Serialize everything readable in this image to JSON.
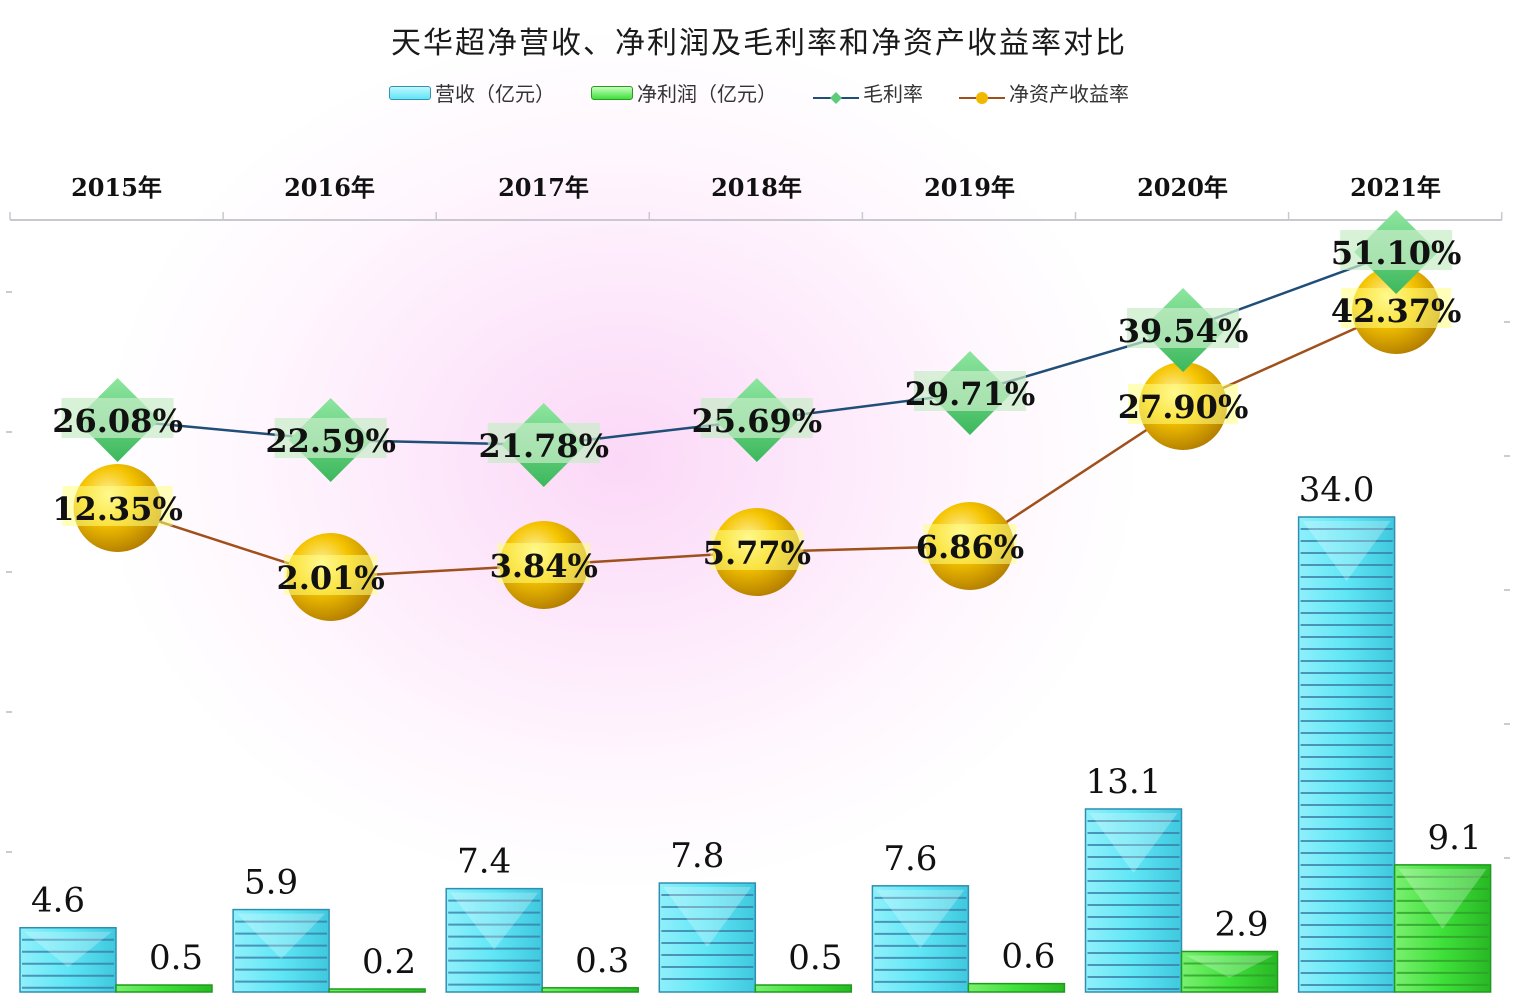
{
  "chart_data": {
    "type": "bar+line",
    "title": "天华超净营收、净利润及毛利率和净资产收益率对比",
    "categories": [
      "2015年",
      "2016年",
      "2017年",
      "2018年",
      "2019年",
      "2020年",
      "2021年"
    ],
    "series": [
      {
        "name": "营收（亿元）",
        "type": "bar",
        "axis": "left",
        "values": [
          4.6,
          5.9,
          7.4,
          7.8,
          7.6,
          13.1,
          34.0
        ],
        "labels": [
          "4.6",
          "5.9",
          "7.4",
          "7.8",
          "7.6",
          "13.1",
          "34.0"
        ],
        "color": "#5fe6f5"
      },
      {
        "name": "净利润（亿元）",
        "type": "bar",
        "axis": "left",
        "values": [
          0.5,
          0.2,
          0.3,
          0.5,
          0.6,
          2.9,
          9.1
        ],
        "labels": [
          "0.5",
          "0.2",
          "0.3",
          "0.5",
          "0.6",
          "2.9",
          "9.1"
        ],
        "color": "#3fe03a"
      },
      {
        "name": "毛利率",
        "type": "line",
        "axis": "right",
        "values": [
          26.08,
          22.59,
          21.78,
          25.69,
          29.71,
          39.54,
          51.1
        ],
        "labels": [
          "26.08%",
          "22.59%",
          "21.78%",
          "25.69%",
          "29.71%",
          "39.54%",
          "51.10%"
        ],
        "color": "#1f4e79",
        "marker": "diamond",
        "marker_color": "#5ccc7a"
      },
      {
        "name": "净资产收益率",
        "type": "line",
        "axis": "right",
        "values": [
          12.35,
          2.01,
          3.84,
          5.77,
          6.86,
          27.9,
          42.37
        ],
        "labels": [
          "12.35%",
          "2.01%",
          "3.84%",
          "5.77%",
          "6.86%",
          "27.90%",
          "42.37%"
        ],
        "color": "#a0501a",
        "marker": "circle",
        "marker_color": "#f0b800"
      }
    ],
    "xlabel": "",
    "ylabel": "",
    "x_axis_position": "top",
    "grid": false,
    "legend_position": "top",
    "y_tick_labels_visible": false
  },
  "legend": [
    {
      "label": "营收（亿元）",
      "kind": "bar",
      "color": "#5fe6f5"
    },
    {
      "label": "净利润（亿元）",
      "kind": "bar",
      "color": "#3fe03a"
    },
    {
      "label": "毛利率",
      "kind": "line-diamond",
      "color": "#1f4e79",
      "marker": "#5ccc7a"
    },
    {
      "label": "净资产收益率",
      "kind": "line-circle",
      "color": "#a0501a",
      "marker": "#f0b800"
    }
  ]
}
